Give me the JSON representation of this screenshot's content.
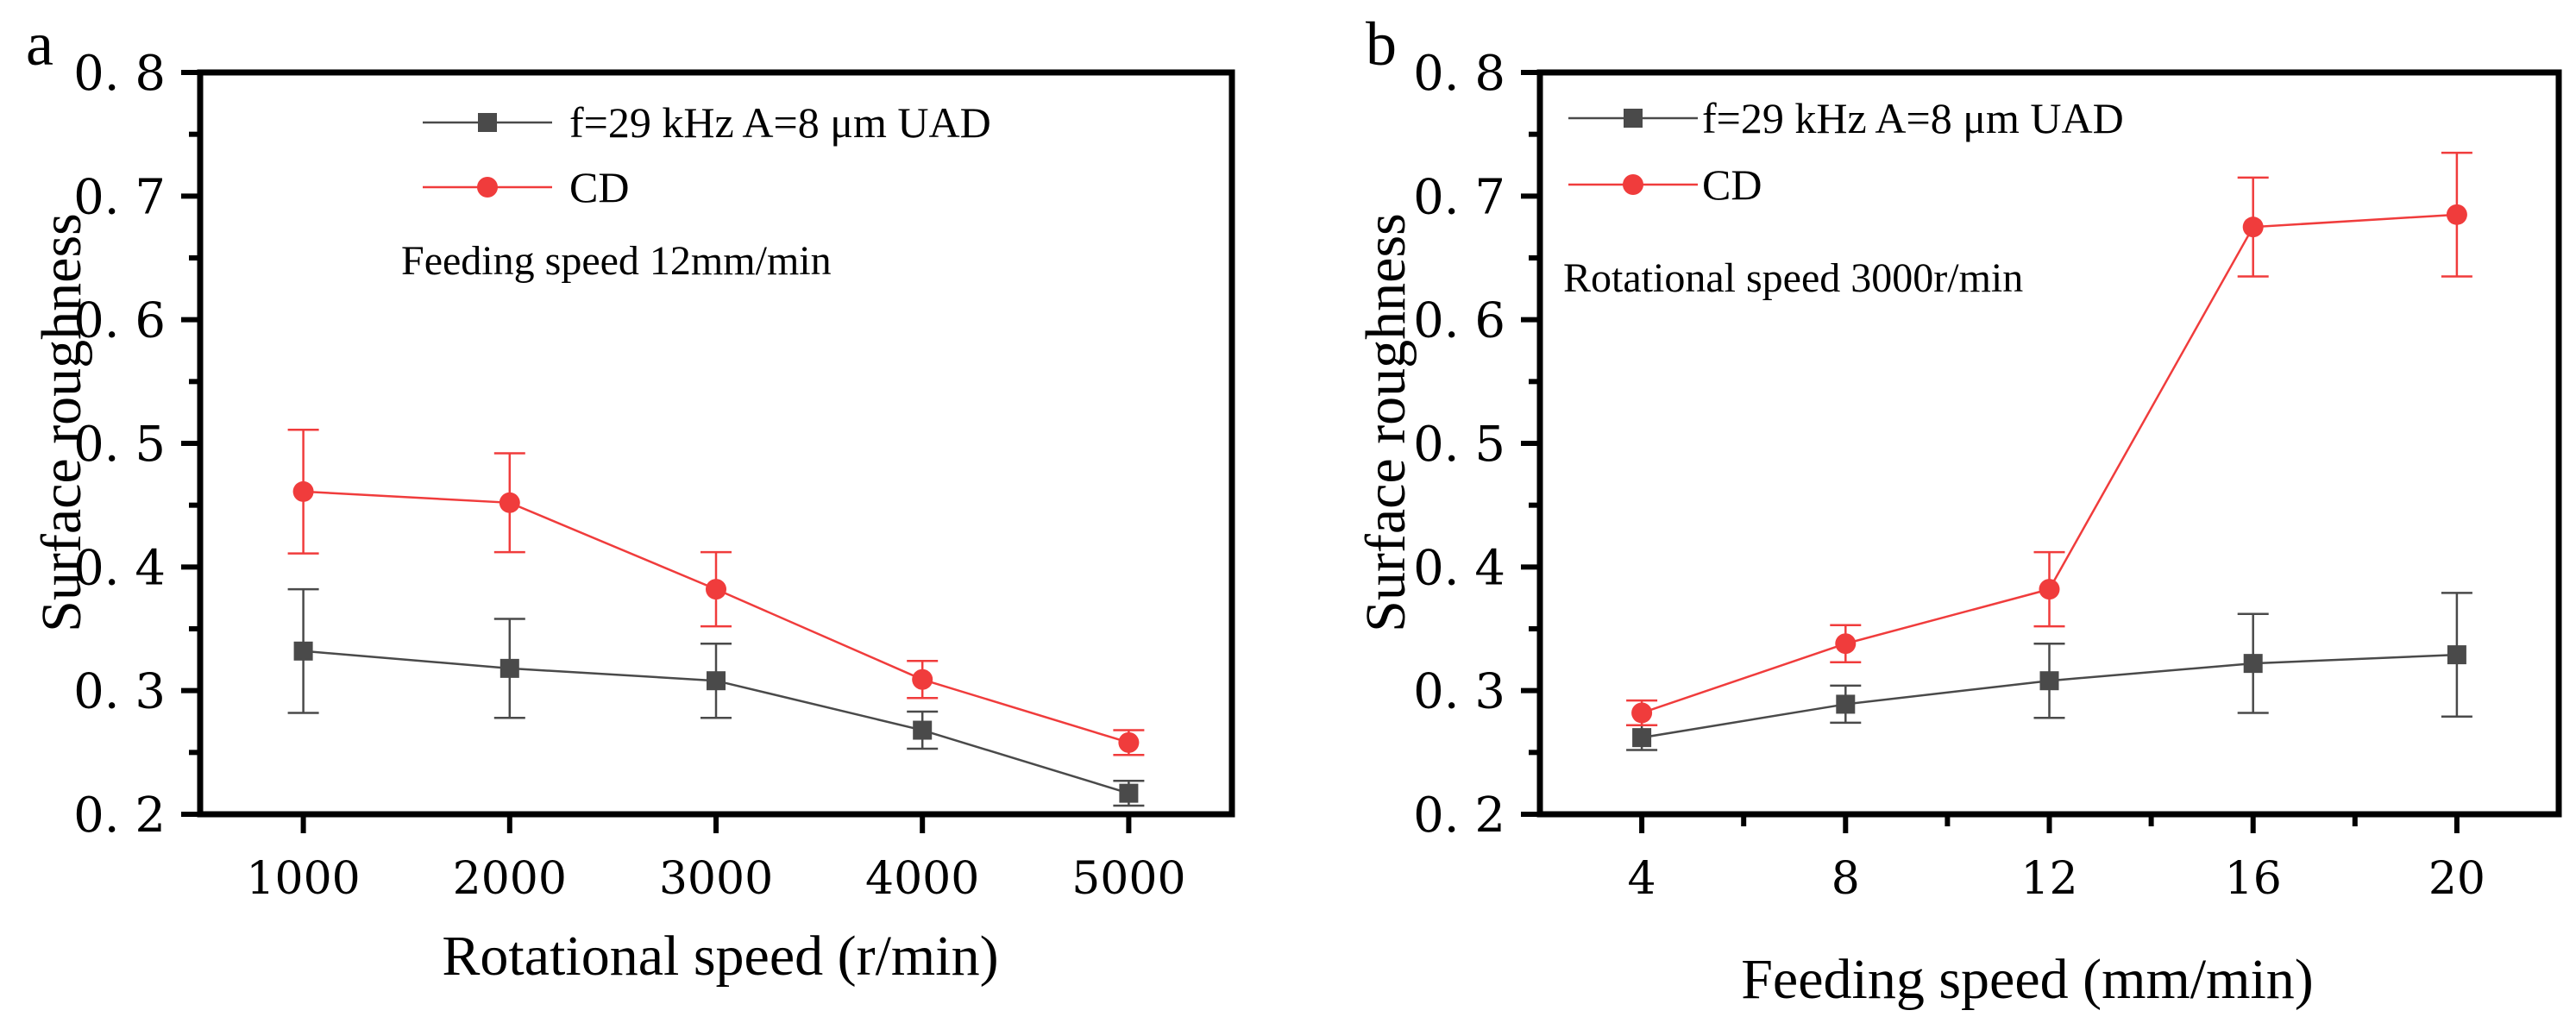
{
  "chart_data": [
    {
      "type": "line",
      "panel_label": "a",
      "title": "",
      "xlabel": "Rotational speed (r/min)",
      "ylabel": "Surface roughness",
      "annotation": "Feeding speed 12mm/min",
      "categories": [
        "1000",
        "2000",
        "3000",
        "4000",
        "5000"
      ],
      "xlim": [
        500,
        5500
      ],
      "ylim": [
        0.2,
        0.8
      ],
      "yticks": [
        "0.2",
        "0.3",
        "0.4",
        "0.5",
        "0.6",
        "0.7",
        "0.8"
      ],
      "legend_position": "top-center",
      "series": [
        {
          "name": "f=29 kHz A=8 μm UAD",
          "color": "#4a4a4a",
          "marker": "square",
          "values": [
            0.332,
            0.318,
            0.308,
            0.268,
            0.217
          ],
          "errors": [
            0.05,
            0.04,
            0.03,
            0.015,
            0.01
          ]
        },
        {
          "name": "CD",
          "color": "#f03c3c",
          "marker": "circle",
          "values": [
            0.461,
            0.452,
            0.382,
            0.309,
            0.258
          ],
          "errors": [
            0.05,
            0.04,
            0.03,
            0.015,
            0.01
          ]
        }
      ]
    },
    {
      "type": "line",
      "panel_label": "b",
      "title": "",
      "xlabel": "Feeding speed (mm/min)",
      "ylabel": "Surface roughness",
      "annotation": "Rotational speed 3000r/min",
      "categories": [
        "4",
        "8",
        "12",
        "16",
        "20"
      ],
      "xlim": [
        2,
        22
      ],
      "ylim": [
        0.2,
        0.8
      ],
      "yticks": [
        "0.2",
        "0.3",
        "0.4",
        "0.5",
        "0.6",
        "0.7",
        "0.8"
      ],
      "legend_position": "top-left",
      "series": [
        {
          "name": "f=29 kHz A=8 μm UAD",
          "color": "#4a4a4a",
          "marker": "square",
          "values": [
            0.262,
            0.289,
            0.308,
            0.322,
            0.329
          ],
          "errors": [
            0.01,
            0.015,
            0.03,
            0.04,
            0.05
          ]
        },
        {
          "name": "CD",
          "color": "#f03c3c",
          "marker": "circle",
          "values": [
            0.282,
            0.338,
            0.382,
            0.675,
            0.685
          ],
          "errors": [
            0.01,
            0.015,
            0.03,
            0.04,
            0.05
          ]
        }
      ]
    }
  ]
}
